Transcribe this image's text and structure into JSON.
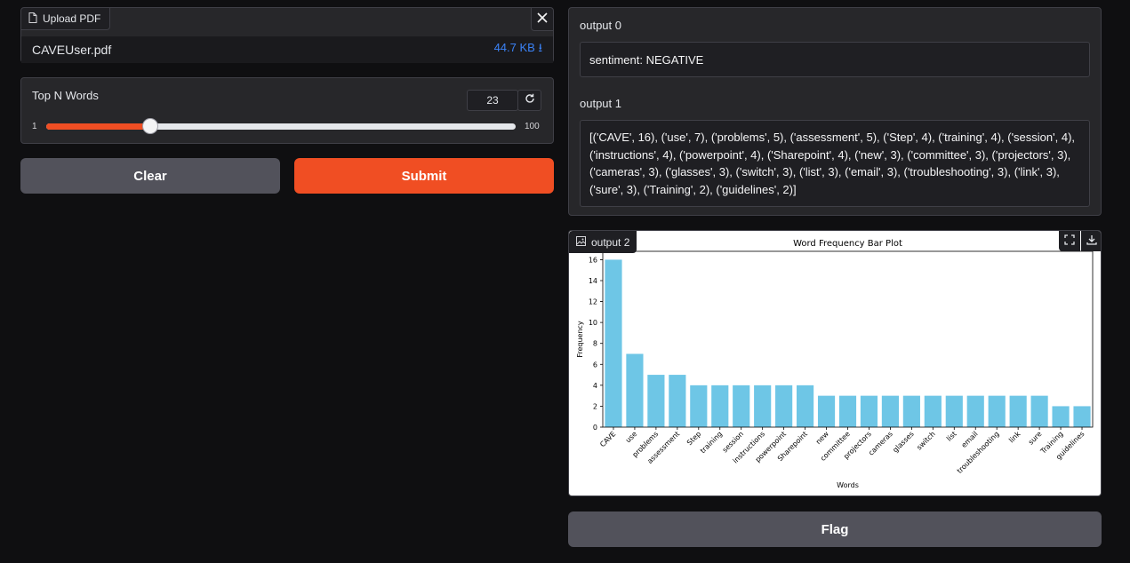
{
  "upload": {
    "label": "Upload PDF",
    "file_name": "CAVEUser.pdf",
    "file_size": "44.7 KB ⭳"
  },
  "slider": {
    "label": "Top N Words",
    "value": "23",
    "min": "1",
    "max": "100",
    "current": 23
  },
  "buttons": {
    "clear": "Clear",
    "submit": "Submit",
    "flag": "Flag"
  },
  "outputs": {
    "out0_label": "output 0",
    "out0_value": "sentiment: NEGATIVE",
    "out1_label": "output 1",
    "out1_value": "[('CAVE', 16), ('use', 7), ('problems', 5), ('assessment', 5), ('Step', 4), ('training', 4), ('session', 4), ('instructions', 4), ('powerpoint', 4), ('Sharepoint', 4), ('new', 3), ('committee', 3), ('projectors', 3), ('cameras', 3), ('glasses', 3), ('switch', 3), ('list', 3), ('email', 3), ('troubleshooting', 3), ('link', 3), ('sure', 3), ('Training', 2), ('guidelines', 2)]",
    "out2_label": "output 2"
  },
  "icons": {
    "file": "file-icon",
    "close": "close-icon",
    "reset": "reset-icon",
    "image": "image-icon",
    "fullscreen": "fullscreen-icon",
    "download": "download-icon"
  },
  "colors": {
    "accent": "#f04e23",
    "bar": "#6ec6e6",
    "link": "#3b82f6"
  },
  "chart_data": {
    "type": "bar",
    "title": "Word Frequency Bar Plot",
    "xlabel": "Words",
    "ylabel": "Frequency",
    "categories": [
      "CAVE",
      "use",
      "problems",
      "assessment",
      "Step",
      "training",
      "session",
      "instructions",
      "powerpoint",
      "Sharepoint",
      "new",
      "committee",
      "projectors",
      "cameras",
      "glasses",
      "switch",
      "list",
      "email",
      "troubleshooting",
      "link",
      "sure",
      "Training",
      "guidelines"
    ],
    "values": [
      16,
      7,
      5,
      5,
      4,
      4,
      4,
      4,
      4,
      4,
      3,
      3,
      3,
      3,
      3,
      3,
      3,
      3,
      3,
      3,
      3,
      2,
      2
    ],
    "ylim": [
      0,
      16.8
    ],
    "yticks": [
      0,
      2,
      4,
      6,
      8,
      10,
      12,
      14,
      16
    ],
    "grid": false
  }
}
